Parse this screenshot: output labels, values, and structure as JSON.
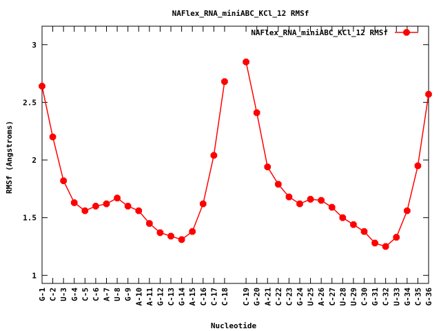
{
  "chart_data": {
    "type": "line",
    "title": "NAFlex_RNA_miniABC_KCl_12 RMSf",
    "xlabel": "Nucleotide",
    "ylabel": "RMSf (Angstroms)",
    "ylim": [
      0.93,
      3.16
    ],
    "yticks": [
      1,
      1.5,
      2,
      2.5,
      3
    ],
    "grid": false,
    "legend_position": "top-right",
    "series": [
      {
        "name": "NAFlex_RNA_miniABC_KCl_12 RMSf",
        "color": "#ff0000",
        "segments": [
          {
            "categories": [
              "G-1",
              "C-2",
              "U-3",
              "G-4",
              "C-5",
              "C-6",
              "A-7",
              "U-8",
              "G-9",
              "A-10",
              "A-11",
              "G-12",
              "C-13",
              "G-14",
              "A-15",
              "C-16",
              "C-17",
              "C-18"
            ],
            "values": [
              2.64,
              2.2,
              1.82,
              1.63,
              1.56,
              1.6,
              1.62,
              1.67,
              1.6,
              1.56,
              1.45,
              1.37,
              1.34,
              1.31,
              1.38,
              1.62,
              2.04,
              2.68
            ]
          },
          {
            "categories": [
              "C-19",
              "G-20",
              "A-21",
              "C-22",
              "C-23",
              "G-24",
              "U-25",
              "A-26",
              "C-27",
              "U-28",
              "U-29",
              "C-30",
              "G-31",
              "C-32",
              "U-33",
              "G-34",
              "C-35",
              "G-36"
            ],
            "values": [
              2.85,
              2.41,
              1.94,
              1.79,
              1.68,
              1.62,
              1.66,
              1.65,
              1.59,
              1.5,
              1.44,
              1.38,
              1.28,
              1.25,
              1.33,
              1.56,
              1.95,
              2.57
            ]
          }
        ]
      }
    ]
  }
}
